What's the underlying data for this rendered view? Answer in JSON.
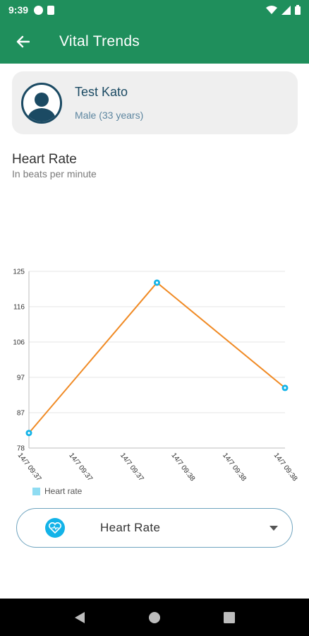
{
  "status_bar": {
    "time": "9:39",
    "icons": [
      "notification-icon",
      "sd-card-icon",
      "wifi-icon",
      "cell-signal-icon",
      "battery-icon"
    ]
  },
  "app_bar": {
    "title": "Vital Trends",
    "back_icon": "arrow-left-icon"
  },
  "patient": {
    "name": "Test Kato",
    "meta": "Male (33 years)",
    "avatar_icon": "person-silhouette-icon"
  },
  "section": {
    "title": "Heart Rate",
    "subtitle": "In beats per minute"
  },
  "chart_data": {
    "type": "line",
    "title": "",
    "xlabel": "",
    "ylabel": "",
    "y_ticks": [
      "78",
      "87",
      "97",
      "106",
      "116",
      "125"
    ],
    "ylim": [
      78,
      125
    ],
    "x_ticks": [
      "14/7 09:37",
      "14/7 09:37",
      "14/7 09:37",
      "14/7 09:38",
      "14/7 09:38",
      "14/7 09:38"
    ],
    "series": [
      {
        "name": "Heart rate",
        "x": [
          0,
          2.5,
          5
        ],
        "values": [
          82,
          122,
          94
        ],
        "line_color": "#f08a24",
        "point_color": "#13b3e8"
      }
    ],
    "grid": true,
    "legend": "bottom-left"
  },
  "dropdown": {
    "selected": "Heart Rate",
    "icon": "heart-pulse-icon",
    "caret_icon": "caret-down-icon"
  },
  "nav_bar": {
    "back_icon": "nav-back-icon",
    "home_icon": "nav-home-icon",
    "recents_icon": "nav-recents-icon"
  },
  "colors": {
    "primary": "#1f8f5c",
    "accent": "#13b3e8",
    "line": "#f08a24",
    "card": "#efefef"
  }
}
